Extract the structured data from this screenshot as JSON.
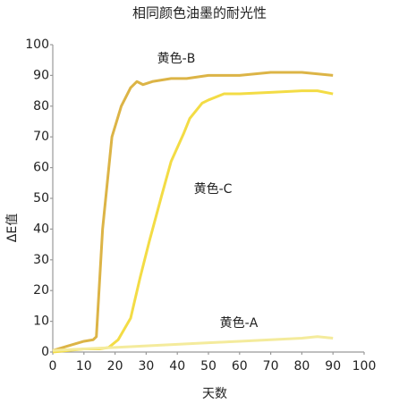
{
  "chart_data": {
    "type": "line",
    "title": "相同颜色油墨的耐光性",
    "x_label": "天数",
    "y_label": "ΔE值",
    "xlim": [
      0,
      100
    ],
    "xticks": [
      0,
      10,
      20,
      30,
      40,
      50,
      60,
      70,
      80,
      90,
      100
    ],
    "ylim": [
      0,
      100
    ],
    "yticks": [
      0,
      10,
      20,
      30,
      40,
      50,
      60,
      70,
      80,
      90,
      100
    ],
    "series": [
      {
        "name": "黄色-B",
        "color": "#dcb446",
        "x": [
          0,
          5,
          10,
          13,
          14,
          16,
          19,
          22,
          25,
          27,
          29,
          32,
          38,
          43,
          50,
          60,
          70,
          80,
          90
        ],
        "values": [
          0.5,
          2,
          3.5,
          4,
          5,
          40,
          70,
          80,
          86,
          88,
          87,
          88,
          89,
          89,
          90,
          90,
          91,
          91,
          90
        ]
      },
      {
        "name": "黄色-C",
        "color": "#f3dc45",
        "x": [
          0,
          10,
          15,
          18,
          21,
          25,
          28,
          31,
          35,
          38,
          42,
          44,
          48,
          50,
          55,
          60,
          70,
          80,
          85,
          90
        ],
        "values": [
          0,
          1,
          1,
          1.5,
          4,
          11,
          24,
          36,
          51,
          62,
          71,
          76,
          81,
          82,
          84,
          84,
          84.5,
          85,
          85,
          84
        ]
      },
      {
        "name": "黄色-A",
        "color": "#f4eb9c",
        "x": [
          0,
          10,
          20,
          30,
          40,
          50,
          60,
          70,
          80,
          85,
          90
        ],
        "values": [
          0.5,
          1,
          1.5,
          2,
          2.5,
          3,
          3.5,
          4,
          4.5,
          5,
          4.5
        ]
      }
    ]
  }
}
